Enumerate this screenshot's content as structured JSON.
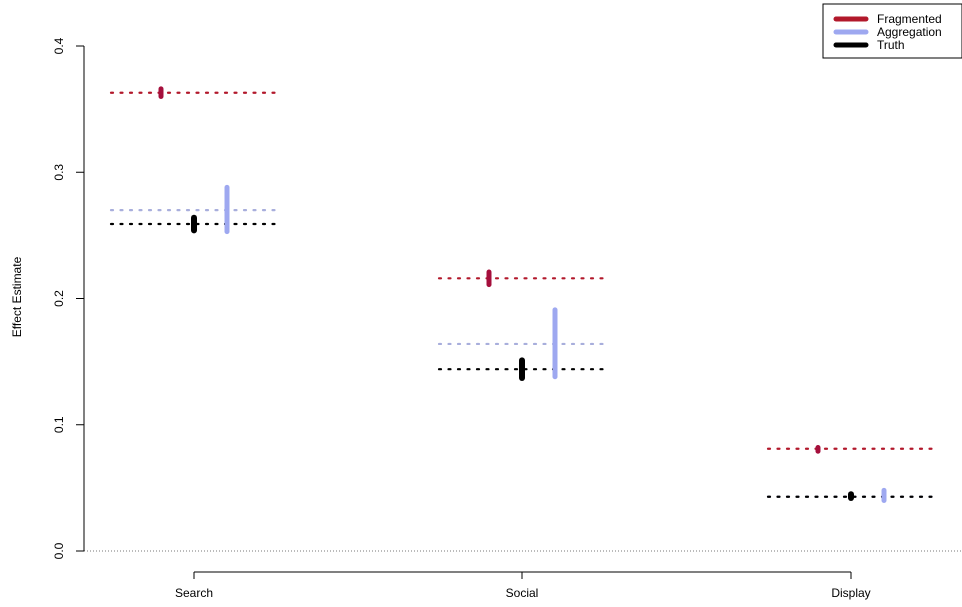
{
  "chart_data": {
    "type": "errorbar",
    "title": "",
    "xlabel": "",
    "ylabel": "Effect Estimate",
    "ylim": [
      0.0,
      0.4
    ],
    "yticks": [
      "0.0",
      "0.1",
      "0.2",
      "0.3",
      "0.4"
    ],
    "categories": [
      "Search",
      "Social",
      "Display"
    ],
    "grid": false,
    "legend_position": "top-right",
    "reference_line": 0.0,
    "series": [
      {
        "name": "Fragmented",
        "color": "#b2182b",
        "marker_color": "#a50f3c",
        "values": [
          0.363,
          0.216,
          0.081
        ],
        "lower": [
          0.36,
          0.211,
          0.079
        ],
        "upper": [
          0.366,
          0.221,
          0.082
        ]
      },
      {
        "name": "Aggregation",
        "color": "#9ea8f0",
        "marker_color": "#9ea8f0",
        "values": [
          0.27,
          0.164,
          0.043
        ],
        "lower": [
          0.253,
          0.138,
          0.04
        ],
        "upper": [
          0.288,
          0.191,
          0.048
        ]
      },
      {
        "name": "Truth",
        "color": "#000000",
        "marker_color": "#000000",
        "values": [
          0.259,
          0.144,
          0.043
        ],
        "lower": [
          0.254,
          0.137,
          0.042
        ],
        "upper": [
          0.264,
          0.151,
          0.045
        ]
      }
    ]
  }
}
